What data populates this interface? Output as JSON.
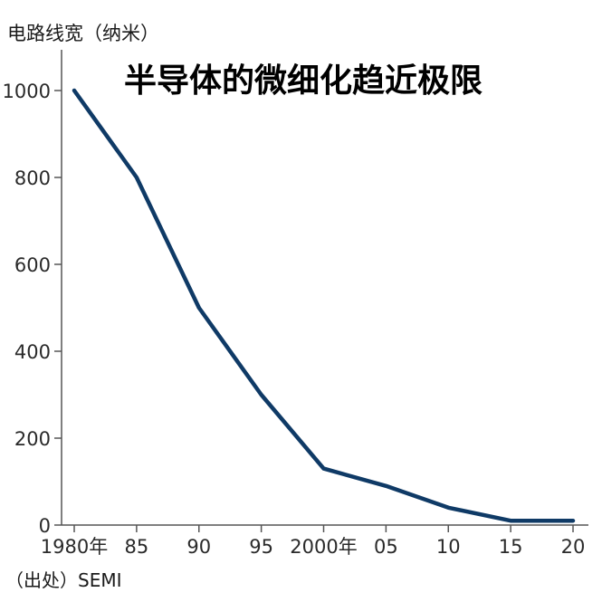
{
  "chart_data": {
    "type": "line",
    "title": "半导体的微细化趋近极限",
    "ylabel": "电路线宽（纳米）",
    "xlabel": "",
    "source": "（出处）SEMI",
    "x": [
      1980,
      1985,
      1990,
      1995,
      2000,
      2005,
      2010,
      2015,
      2020
    ],
    "x_tick_labels": [
      "1980年",
      "85",
      "90",
      "95",
      "2000年",
      "05",
      "10",
      "15",
      "20"
    ],
    "y_ticks": [
      0,
      200,
      400,
      600,
      800,
      1000
    ],
    "y_tick_labels": [
      "0",
      "200",
      "400",
      "600",
      "800",
      "1000"
    ],
    "ylim": [
      0,
      1000
    ],
    "xlim": [
      1980,
      2020
    ],
    "series": [
      {
        "values": [
          1000,
          800,
          500,
          300,
          130,
          90,
          40,
          10,
          10
        ],
        "color": "#0f3a66"
      }
    ],
    "grid": false
  }
}
